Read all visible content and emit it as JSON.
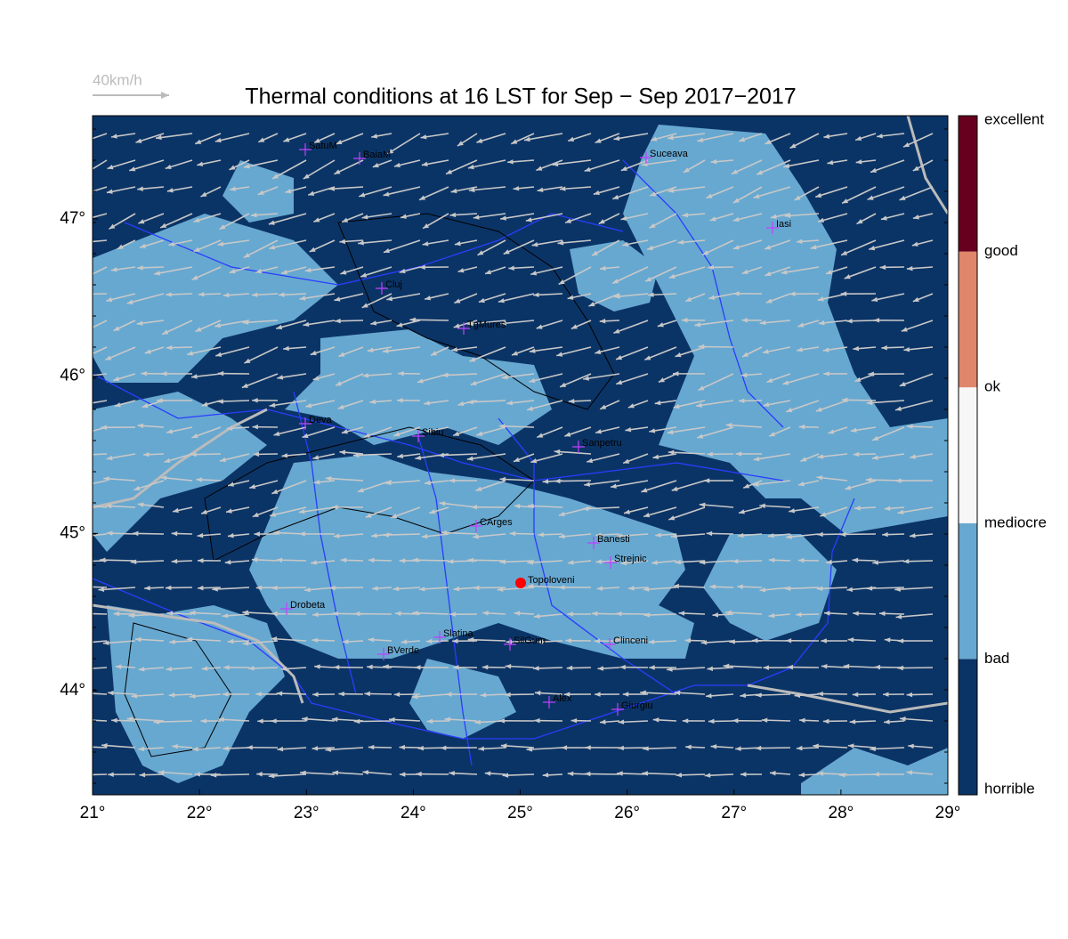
{
  "title": "Thermal conditions at 16 LST for Sep − Sep  2017−2017",
  "wind_legend": "40km/h",
  "x_ticks": [
    "21°",
    "22°",
    "23°",
    "24°",
    "25°",
    "26°",
    "27°",
    "28°",
    "29°"
  ],
  "y_ticks": [
    "44°",
    "45°",
    "46°",
    "47°"
  ],
  "colorbar": {
    "labels": [
      "horrible",
      "bad",
      "mediocre",
      "ok",
      "good",
      "excellent"
    ],
    "colors": [
      "#0b3466",
      "#67a8d0",
      "#f7f7f7",
      "#e0866a",
      "#67001f"
    ]
  },
  "cities": [
    "SatuM",
    "BaiaM",
    "Suceava",
    "Iasi",
    "Cluj",
    "TgMures",
    "Deva",
    "Sibiu",
    "Sanpetru",
    "CArges",
    "Banesti",
    "Strejnic",
    "Drobeta",
    "Slatina",
    "SilGum",
    "Clinceni",
    "BVerde",
    "Alex",
    "Giurgiu"
  ],
  "selected_site": "Topoloveni"
}
